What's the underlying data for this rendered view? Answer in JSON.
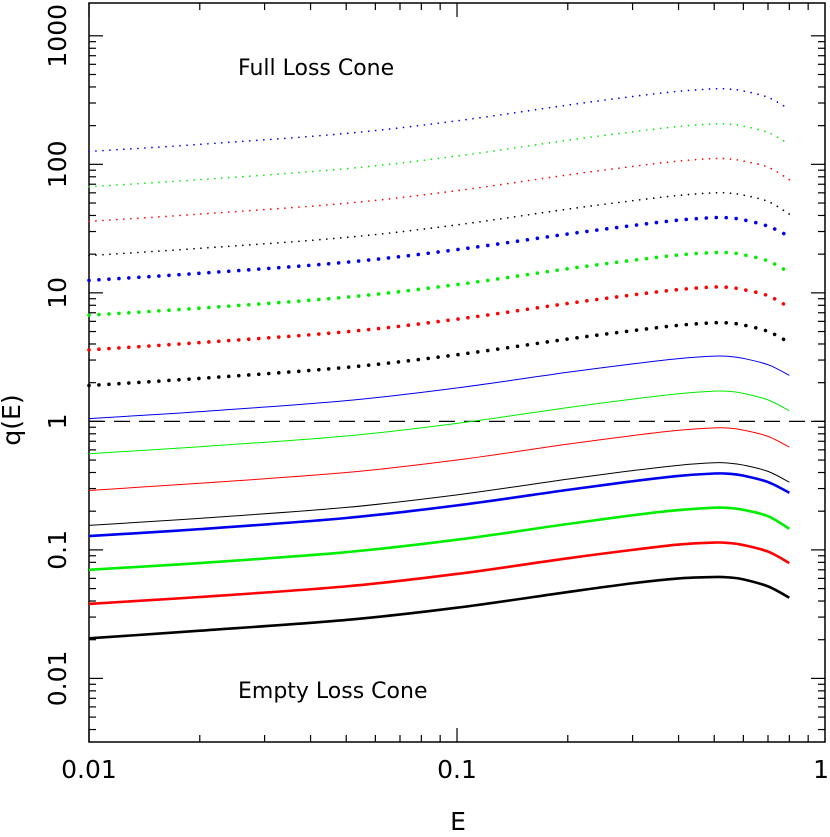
{
  "chart_data": {
    "type": "line",
    "title": "",
    "xlabel": "E",
    "ylabel": "q(E)",
    "xscale": "log",
    "yscale": "log",
    "xlim": [
      0.01,
      1
    ],
    "ylim": [
      0.0032,
      1800
    ],
    "x_tick_labels": [
      "0.01",
      "0.1",
      "1"
    ],
    "y_tick_labels": [
      "0.01",
      "0.1",
      "1",
      "10",
      "100",
      "1000"
    ],
    "annotations": [
      "Full Loss Cone",
      "Empty Loss Cone"
    ],
    "reference_line": {
      "y": 1,
      "style": "dashed",
      "color": "#000000"
    },
    "grid": false,
    "legend": "none",
    "x": [
      0.01,
      0.02,
      0.05,
      0.1,
      0.2,
      0.3,
      0.4,
      0.5,
      0.55,
      0.6,
      0.7,
      0.8
    ],
    "series": [
      {
        "color": "#000000",
        "style": "solid-thick",
        "values": [
          0.0205,
          0.0235,
          0.0285,
          0.0355,
          0.047,
          0.055,
          0.06,
          0.0615,
          0.061,
          0.059,
          0.052,
          0.0425
        ]
      },
      {
        "color": "#ff0000",
        "style": "solid-thick",
        "values": [
          0.038,
          0.043,
          0.052,
          0.065,
          0.086,
          0.1,
          0.11,
          0.114,
          0.113,
          0.109,
          0.097,
          0.079
        ]
      },
      {
        "color": "#00ee00",
        "style": "solid-thick",
        "values": [
          0.07,
          0.079,
          0.096,
          0.12,
          0.159,
          0.186,
          0.204,
          0.213,
          0.212,
          0.205,
          0.183,
          0.146
        ]
      },
      {
        "color": "#0000ee",
        "style": "solid-thick",
        "values": [
          0.128,
          0.145,
          0.177,
          0.222,
          0.293,
          0.342,
          0.376,
          0.393,
          0.391,
          0.378,
          0.337,
          0.278
        ]
      },
      {
        "color": "#000000",
        "style": "solid-thin",
        "values": [
          0.155,
          0.176,
          0.214,
          0.268,
          0.355,
          0.414,
          0.455,
          0.476,
          0.473,
          0.457,
          0.408,
          0.336
        ]
      },
      {
        "color": "#ff0000",
        "style": "solid-thin",
        "values": [
          0.29,
          0.33,
          0.4,
          0.5,
          0.665,
          0.775,
          0.852,
          0.89,
          0.886,
          0.855,
          0.764,
          0.63
        ]
      },
      {
        "color": "#00ee00",
        "style": "solid-thin",
        "values": [
          0.56,
          0.635,
          0.77,
          0.965,
          1.28,
          1.49,
          1.64,
          1.72,
          1.71,
          1.65,
          1.47,
          1.21
        ]
      },
      {
        "color": "#0000ee",
        "style": "solid-thin",
        "values": [
          1.05,
          1.19,
          1.45,
          1.82,
          2.41,
          2.8,
          3.08,
          3.22,
          3.2,
          3.09,
          2.76,
          2.28
        ]
      },
      {
        "color": "#000000",
        "style": "dotted-thick",
        "values": [
          1.9,
          2.16,
          2.63,
          3.3,
          4.37,
          5.08,
          5.59,
          5.85,
          5.82,
          5.62,
          5.01,
          4.1
        ]
      },
      {
        "color": "#ff0000",
        "style": "dotted-thick",
        "values": [
          3.6,
          4.1,
          4.98,
          6.24,
          8.27,
          9.63,
          10.6,
          11.1,
          11.0,
          10.6,
          9.5,
          7.7
        ]
      },
      {
        "color": "#00ee00",
        "style": "dotted-thick",
        "values": [
          6.7,
          7.6,
          9.25,
          11.6,
          15.4,
          17.9,
          19.7,
          20.6,
          20.5,
          19.8,
          17.7,
          14.4
        ]
      },
      {
        "color": "#0000ee",
        "style": "dotted-thick",
        "values": [
          12.5,
          14.2,
          17.3,
          21.7,
          28.7,
          33.4,
          36.8,
          38.5,
          38.3,
          37.0,
          33.0,
          27.5
        ]
      },
      {
        "color": "#000000",
        "style": "dotted-thin",
        "values": [
          19.5,
          22.2,
          27.0,
          33.8,
          44.8,
          52.1,
          57.3,
          60.0,
          59.7,
          57.6,
          51.4,
          41.0
        ]
      },
      {
        "color": "#ff0000",
        "style": "dotted-thin",
        "values": [
          36.0,
          41.0,
          49.8,
          62.4,
          82.7,
          96.3,
          106,
          111,
          110,
          106,
          95.0,
          76.0
        ]
      },
      {
        "color": "#00ee00",
        "style": "dotted-thin",
        "values": [
          67.0,
          76.0,
          92.5,
          116,
          154,
          179,
          197,
          206,
          205,
          198,
          177,
          143
        ]
      },
      {
        "color": "#0000ee",
        "style": "dotted-thin",
        "values": [
          126,
          143,
          174,
          218,
          289,
          337,
          370,
          387,
          385,
          372,
          332,
          268
        ]
      }
    ]
  }
}
